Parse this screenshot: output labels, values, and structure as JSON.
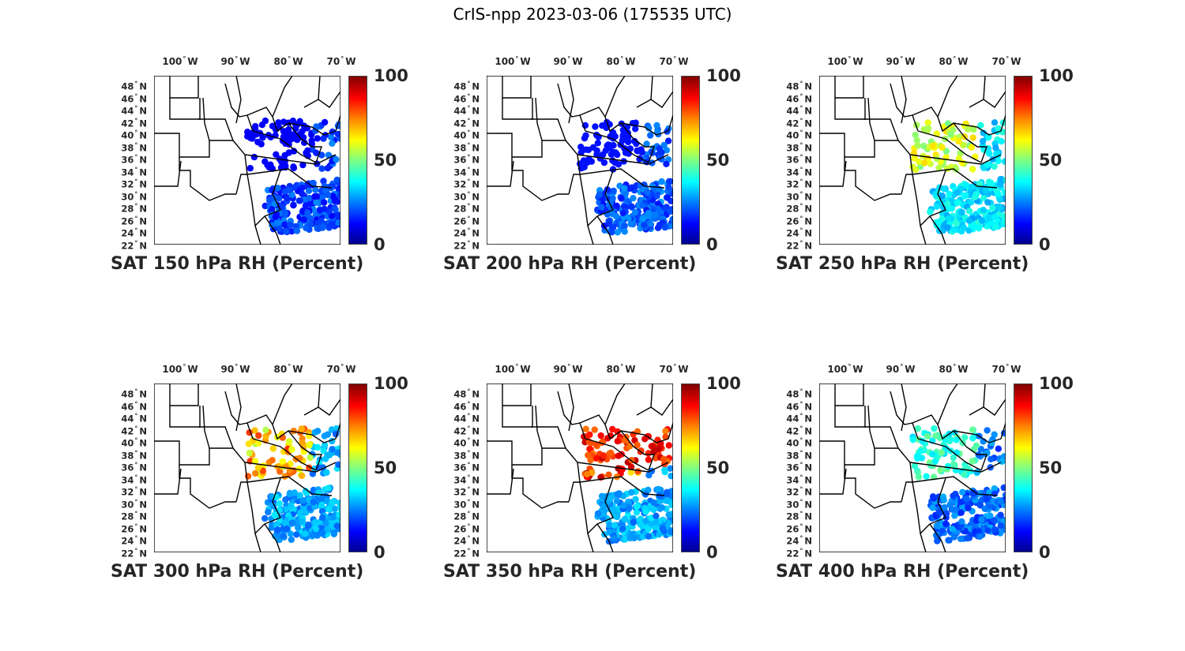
{
  "figure_title": "CrIS-npp 2023-03-06 (175535 UTC)",
  "longitude_labels": [
    "100",
    "90",
    "80",
    "70"
  ],
  "longitude_suffix": "W",
  "latitude_labels": [
    "48",
    "46",
    "44",
    "42",
    "40",
    "38",
    "36",
    "34",
    "32",
    "30",
    "28",
    "26",
    "24",
    "22"
  ],
  "latitude_suffix": "N",
  "degree_mark": "°",
  "colorbar": {
    "ticks": [
      "100",
      "50",
      "0"
    ],
    "colormap": "jet",
    "min": 0,
    "max": 100
  },
  "panels": [
    {
      "title": "SAT 150 hPa RH (Percent)",
      "level_hpa": 150,
      "variable": "RH",
      "unit": "Percent",
      "dominant_color": "#1a3cf0"
    },
    {
      "title": "SAT 200 hPa RH (Percent)",
      "level_hpa": 200,
      "variable": "RH",
      "unit": "Percent",
      "dominant_color": "#1e50f5"
    },
    {
      "title": "SAT 250 hPa RH (Percent)",
      "level_hpa": 250,
      "variable": "RH",
      "unit": "Percent",
      "dominant_color": "#2a7dff"
    },
    {
      "title": "SAT 300 hPa RH (Percent)",
      "level_hpa": 300,
      "variable": "RH",
      "unit": "Percent",
      "dominant_color": "#3a6cf7"
    },
    {
      "title": "SAT 350 hPa RH (Percent)",
      "level_hpa": 350,
      "variable": "RH",
      "unit": "Percent",
      "dominant_color": "#2a60f2"
    },
    {
      "title": "SAT 400 hPa RH (Percent)",
      "level_hpa": 400,
      "variable": "RH",
      "unit": "Percent",
      "dominant_color": "#1f40ec"
    }
  ]
}
